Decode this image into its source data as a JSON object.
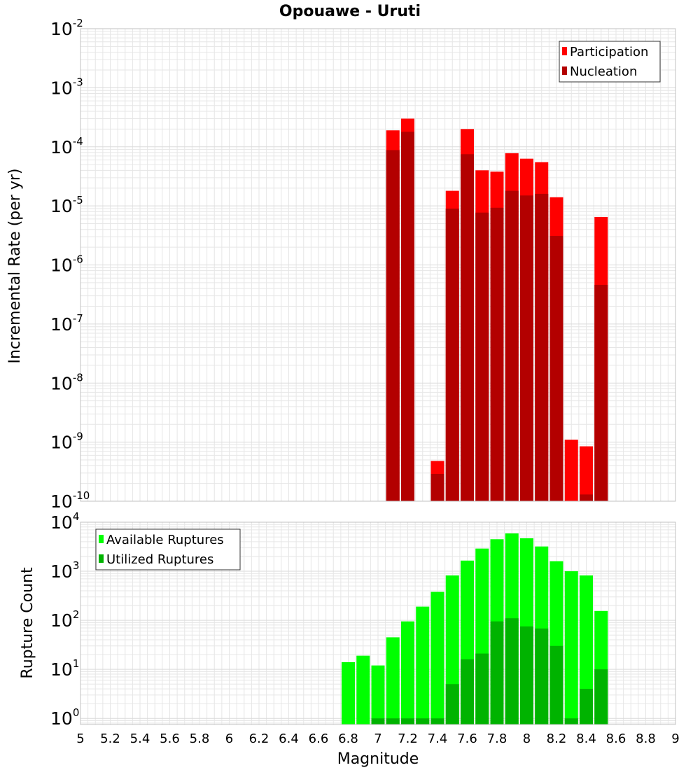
{
  "title": "Opouawe - Uruti",
  "colors": {
    "participation": "#ff0000",
    "nucleation": "#b30000",
    "available": "#00ff00",
    "utilized": "#00b300",
    "grid": "#e6e6e6",
    "frame": "#c0c0c0"
  },
  "chart_data": [
    {
      "type": "bar",
      "ylabel": "Incremental Rate (per yr)",
      "yscale": "log",
      "ylim": [
        1e-10,
        0.01
      ],
      "ytick_exponents": [
        "-2",
        "-3",
        "-4",
        "-5",
        "-6",
        "-7",
        "-8",
        "-9",
        "-10"
      ],
      "xlim": [
        5,
        9
      ],
      "legend_position": "top-right",
      "x": [
        7.1,
        7.2,
        7.3,
        7.4,
        7.5,
        7.6,
        7.7,
        7.8,
        7.9,
        8.0,
        8.1,
        8.2,
        8.3,
        8.4,
        8.5
      ],
      "series": [
        {
          "name": "Participation",
          "values": [
            0.00019,
            0.0003,
            0,
            4.8e-10,
            1.8e-05,
            0.0002,
            4e-05,
            3.8e-05,
            7.8e-05,
            6.3e-05,
            5.5e-05,
            1.4e-05,
            1.1e-09,
            8.5e-10,
            6.5e-06
          ]
        },
        {
          "name": "Nucleation",
          "values": [
            8.8e-05,
            0.00018,
            0,
            2.9e-10,
            9e-06,
            7.5e-05,
            7.7e-06,
            9.3e-06,
            1.8e-05,
            1.5e-05,
            1.6e-05,
            3.1e-06,
            0,
            1.3e-10,
            4.6e-07
          ]
        }
      ]
    },
    {
      "type": "bar",
      "xlabel": "Magnitude",
      "ylabel": "Rupture Count",
      "yscale": "log",
      "ylim": [
        0.75,
        10000
      ],
      "ytick_exponents": [
        "4",
        "3",
        "2",
        "1",
        "0"
      ],
      "xlim": [
        5,
        9
      ],
      "xtick_labels": [
        "5",
        "5.2",
        "5.4",
        "5.6",
        "5.8",
        "6",
        "6.2",
        "6.4",
        "6.6",
        "6.8",
        "7",
        "7.2",
        "7.4",
        "7.6",
        "7.8",
        "8",
        "8.2",
        "8.4",
        "8.6",
        "8.8",
        "9"
      ],
      "legend_position": "top-left",
      "x": [
        6.8,
        6.9,
        7.0,
        7.1,
        7.2,
        7.3,
        7.4,
        7.5,
        7.6,
        7.7,
        7.8,
        7.9,
        8.0,
        8.1,
        8.2,
        8.3,
        8.4,
        8.5
      ],
      "series": [
        {
          "name": "Available Ruptures",
          "values": [
            14,
            19,
            12,
            45,
            95,
            190,
            380,
            820,
            1650,
            2900,
            4500,
            5900,
            4700,
            3200,
            1600,
            1000,
            820,
            155
          ]
        },
        {
          "name": "Utilized Ruptures",
          "values": [
            0,
            0,
            1,
            1,
            1,
            1,
            1,
            5,
            16,
            21,
            95,
            110,
            75,
            68,
            30,
            1,
            4,
            10
          ]
        }
      ]
    }
  ]
}
